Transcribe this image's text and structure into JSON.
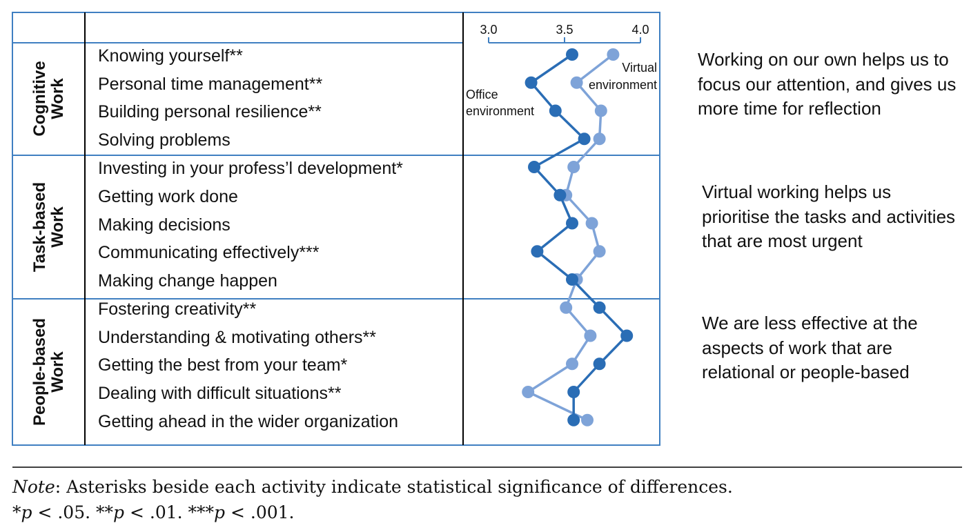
{
  "colors": {
    "frame": "#3f7fc1",
    "office": "#2a6db5",
    "virtual": "#7ea3d8",
    "axis": "#3f7fc1",
    "divider": "#000000"
  },
  "groups": [
    {
      "label_line1": "Cognitive",
      "label_line2": "Work",
      "activities": [
        "Knowing yourself**",
        "Personal time management**",
        "Building personal resilience**",
        "Solving problems"
      ]
    },
    {
      "label_line1": "Task-based",
      "label_line2": "Work",
      "activities": [
        "Investing in your profess’l development*",
        "Getting work done",
        "Making decisions",
        "Communicating effectively***",
        "Making change happen"
      ]
    },
    {
      "label_line1": "People-based",
      "label_line2": "Work",
      "activities": [
        "Fostering creativity**",
        "Understanding & motivating others**",
        "Getting the best from your team*",
        "Dealing with difficult situations**",
        "Getting ahead in the wider organization"
      ]
    }
  ],
  "chart_data": {
    "type": "line",
    "orientation": "vertical-profile",
    "x_axis_position": "top",
    "xlim": [
      3.0,
      4.0
    ],
    "x_ticks": [
      "3.0",
      "3.5",
      "4.0"
    ],
    "categories": [
      "Knowing yourself**",
      "Personal time management**",
      "Building personal resilience**",
      "Solving problems",
      "Investing in your profess’l development*",
      "Getting work done",
      "Making decisions",
      "Communicating effectively***",
      "Making change happen",
      "Fostering creativity**",
      "Understanding & motivating others**",
      "Getting the best from your team*",
      "Dealing with difficult situations**",
      "Getting ahead in the wider organization"
    ],
    "series": [
      {
        "name_line1": "Office",
        "name_line2": "environment",
        "color": "#2a6db5",
        "values": [
          3.55,
          3.28,
          3.44,
          3.63,
          3.3,
          3.47,
          3.55,
          3.32,
          3.55,
          3.73,
          3.91,
          3.73,
          3.56,
          3.56
        ]
      },
      {
        "name_line1": "Virtual",
        "name_line2": "environment",
        "color": "#7ea3d8",
        "values": [
          3.82,
          3.58,
          3.74,
          3.73,
          3.56,
          3.51,
          3.68,
          3.73,
          3.58,
          3.51,
          3.67,
          3.55,
          3.26,
          3.65
        ]
      }
    ]
  },
  "side_notes": [
    "Working on our own helps us to focus our attention, and gives us more time for reflection",
    "Virtual working helps us prioritise the tasks and activities that are most urgent",
    "We are less effective at the aspects of work that are relational or people-based"
  ],
  "note": {
    "label": "Note",
    "text": ": Asterisks beside each activity indicate statistical significance of differences.",
    "p1_stars": "*",
    "p1_rest": " < .05. ",
    "p2_stars": "**",
    "p2_rest": " < .01. ",
    "p3_stars": "***",
    "p3_rest": " < .001.",
    "p_symbol": "p"
  }
}
